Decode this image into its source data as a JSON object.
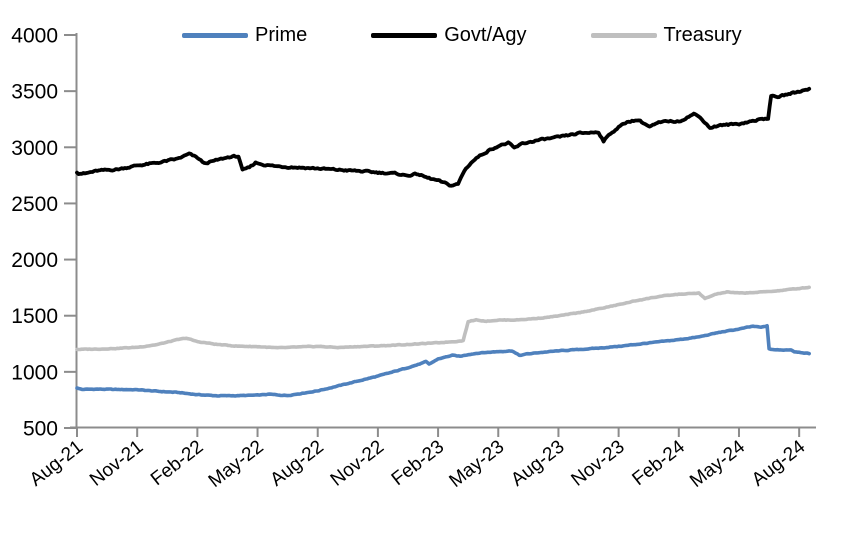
{
  "chart_data": {
    "type": "line",
    "title": "",
    "xlabel": "",
    "ylabel": "",
    "legend_position": "top",
    "grid": false,
    "axis_color": "#8C8C8C",
    "label_color": "#000000",
    "x_axis": {
      "unit": "months since Aug-2021",
      "tick_months": [
        0,
        3,
        6,
        9,
        12,
        15,
        18,
        21,
        24,
        27,
        30,
        33,
        36
      ],
      "tick_labels": [
        "Aug-21",
        "Nov-21",
        "Feb-22",
        "May-22",
        "Aug-22",
        "Nov-22",
        "Feb-23",
        "May-23",
        "Aug-23",
        "Nov-23",
        "Feb-24",
        "May-24",
        "Aug-24"
      ],
      "label_rotation_deg": -38
    },
    "y_axis": {
      "range": [
        500,
        4000
      ],
      "tick_values": [
        4000,
        3500,
        3000,
        2500,
        2000,
        1500,
        1000,
        500
      ],
      "tick_labels": [
        "4000",
        "3500",
        "3000",
        "2500",
        "2000",
        "1500",
        "1000",
        "500"
      ]
    },
    "series": [
      {
        "name": "Prime",
        "color": "#4F81BD",
        "width": 3.6,
        "noise": 5,
        "points": [
          [
            0,
            856
          ],
          [
            0.25,
            844
          ],
          [
            1,
            846
          ],
          [
            2,
            843
          ],
          [
            3,
            841
          ],
          [
            4,
            827
          ],
          [
            5,
            817
          ],
          [
            6,
            797
          ],
          [
            7,
            787
          ],
          [
            8,
            788
          ],
          [
            9,
            792
          ],
          [
            9.6,
            801
          ],
          [
            10,
            794
          ],
          [
            10.5,
            790
          ],
          [
            11,
            803
          ],
          [
            12,
            831
          ],
          [
            13,
            874
          ],
          [
            14,
            918
          ],
          [
            15,
            962
          ],
          [
            16,
            1012
          ],
          [
            17,
            1065
          ],
          [
            17.4,
            1090
          ],
          [
            17.55,
            1068
          ],
          [
            18,
            1115
          ],
          [
            18.7,
            1147
          ],
          [
            19.1,
            1138
          ],
          [
            19.5,
            1155
          ],
          [
            20,
            1167
          ],
          [
            21,
            1181
          ],
          [
            21.7,
            1187
          ],
          [
            22.05,
            1146
          ],
          [
            22.4,
            1158
          ],
          [
            23,
            1171
          ],
          [
            24,
            1187
          ],
          [
            25,
            1199
          ],
          [
            26,
            1211
          ],
          [
            27,
            1227
          ],
          [
            28,
            1247
          ],
          [
            29,
            1267
          ],
          [
            30,
            1287
          ],
          [
            31,
            1311
          ],
          [
            32,
            1351
          ],
          [
            33,
            1381
          ],
          [
            33.7,
            1406
          ],
          [
            34.1,
            1396
          ],
          [
            34.4,
            1410
          ],
          [
            34.5,
            1203
          ],
          [
            35,
            1194
          ],
          [
            35.6,
            1197
          ],
          [
            35.75,
            1181
          ],
          [
            36,
            1176
          ],
          [
            36.5,
            1163
          ]
        ]
      },
      {
        "name": "Govt/Agy",
        "color": "#000000",
        "width": 3.8,
        "noise": 13,
        "points": [
          [
            0,
            2775
          ],
          [
            0.4,
            2766
          ],
          [
            1,
            2790
          ],
          [
            2,
            2803
          ],
          [
            3,
            2838
          ],
          [
            4,
            2861
          ],
          [
            5,
            2897
          ],
          [
            5.6,
            2940
          ],
          [
            6,
            2906
          ],
          [
            6.35,
            2856
          ],
          [
            7,
            2886
          ],
          [
            7.6,
            2914
          ],
          [
            8.05,
            2920
          ],
          [
            8.25,
            2793
          ],
          [
            8.6,
            2820
          ],
          [
            8.9,
            2863
          ],
          [
            9.4,
            2843
          ],
          [
            10,
            2830
          ],
          [
            11,
            2821
          ],
          [
            12,
            2811
          ],
          [
            13,
            2799
          ],
          [
            14,
            2789
          ],
          [
            15,
            2776
          ],
          [
            16,
            2764
          ],
          [
            16.4,
            2748
          ],
          [
            17,
            2762
          ],
          [
            17.4,
            2732
          ],
          [
            18,
            2702
          ],
          [
            18.65,
            2659
          ],
          [
            19,
            2672
          ],
          [
            19.3,
            2790
          ],
          [
            19.65,
            2865
          ],
          [
            20,
            2915
          ],
          [
            20.5,
            2970
          ],
          [
            21,
            3012
          ],
          [
            21.5,
            3038
          ],
          [
            21.8,
            2992
          ],
          [
            22.2,
            3032
          ],
          [
            23,
            3064
          ],
          [
            24,
            3089
          ],
          [
            25,
            3124
          ],
          [
            26,
            3136
          ],
          [
            26.25,
            3058
          ],
          [
            26.6,
            3122
          ],
          [
            27,
            3180
          ],
          [
            27.5,
            3232
          ],
          [
            28,
            3243
          ],
          [
            28.55,
            3182
          ],
          [
            29,
            3217
          ],
          [
            29.5,
            3233
          ],
          [
            30,
            3229
          ],
          [
            30.75,
            3299
          ],
          [
            31.15,
            3253
          ],
          [
            31.55,
            3174
          ],
          [
            32,
            3194
          ],
          [
            33,
            3209
          ],
          [
            34,
            3246
          ],
          [
            34.45,
            3261
          ],
          [
            34.6,
            3456
          ],
          [
            35,
            3450
          ],
          [
            35.4,
            3471
          ],
          [
            36,
            3497
          ],
          [
            36.5,
            3521
          ]
        ]
      },
      {
        "name": "Treasury",
        "color": "#BFBFBF",
        "width": 3.6,
        "noise": 5,
        "points": [
          [
            0,
            1200
          ],
          [
            1,
            1203
          ],
          [
            2,
            1209
          ],
          [
            3,
            1219
          ],
          [
            4,
            1243
          ],
          [
            5,
            1286
          ],
          [
            5.45,
            1300
          ],
          [
            6,
            1269
          ],
          [
            7,
            1244
          ],
          [
            8,
            1229
          ],
          [
            9,
            1225
          ],
          [
            10,
            1213
          ],
          [
            11,
            1221
          ],
          [
            12,
            1227
          ],
          [
            13,
            1217
          ],
          [
            14,
            1225
          ],
          [
            15,
            1231
          ],
          [
            16,
            1239
          ],
          [
            17,
            1249
          ],
          [
            18,
            1259
          ],
          [
            19,
            1273
          ],
          [
            19.25,
            1279
          ],
          [
            19.5,
            1447
          ],
          [
            19.9,
            1463
          ],
          [
            20.4,
            1452
          ],
          [
            21,
            1461
          ],
          [
            22,
            1463
          ],
          [
            23,
            1477
          ],
          [
            24,
            1498
          ],
          [
            25,
            1526
          ],
          [
            26,
            1561
          ],
          [
            27,
            1598
          ],
          [
            28,
            1639
          ],
          [
            29,
            1671
          ],
          [
            30,
            1691
          ],
          [
            31,
            1701
          ],
          [
            31.3,
            1652
          ],
          [
            31.8,
            1689
          ],
          [
            32.4,
            1711
          ],
          [
            33,
            1701
          ],
          [
            34,
            1709
          ],
          [
            35,
            1723
          ],
          [
            36,
            1743
          ],
          [
            36.5,
            1753
          ]
        ]
      }
    ],
    "draw_order": [
      2,
      0,
      1
    ]
  }
}
